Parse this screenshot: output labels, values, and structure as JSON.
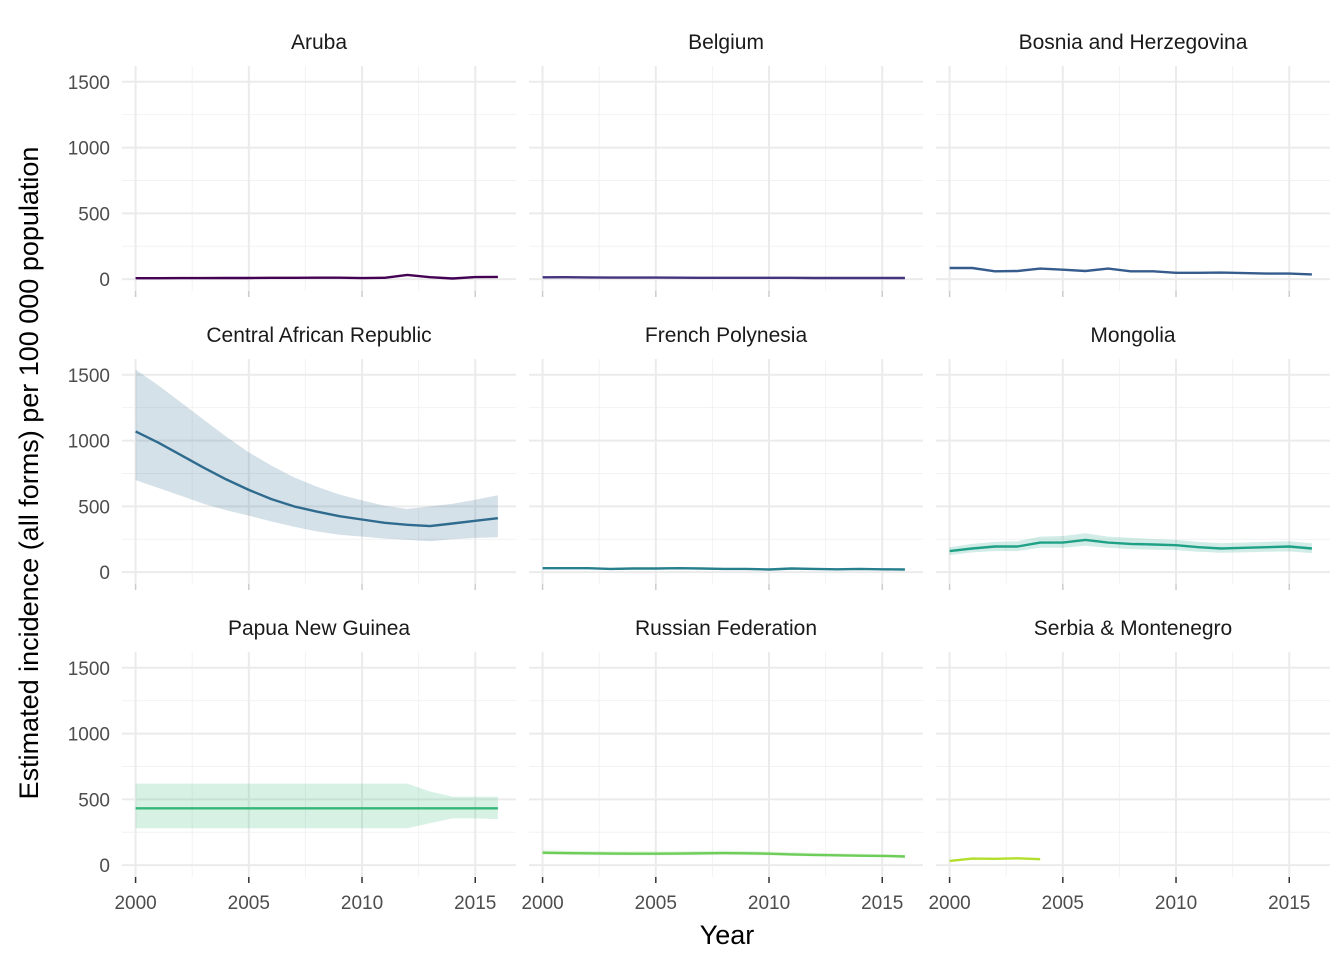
{
  "chart_data": {
    "type": "line",
    "layout": "facet-grid",
    "xlabel": "Year",
    "ylabel": "Estimated incidence (all forms) per 100 000 population",
    "xlim": [
      1999.4,
      2016.8
    ],
    "ylim": [
      -90,
      1620
    ],
    "x_ticks": [
      2000,
      2005,
      2010,
      2015
    ],
    "y_ticks": [
      0,
      500,
      1000,
      1500
    ],
    "grid": true,
    "legend": "none",
    "panels": [
      {
        "name": "Aruba",
        "color": "#440154",
        "x": [
          2000,
          2001,
          2002,
          2003,
          2004,
          2005,
          2006,
          2007,
          2008,
          2009,
          2010,
          2011,
          2012,
          2013,
          2014,
          2015,
          2016
        ],
        "values": [
          7,
          7,
          8,
          8,
          9,
          9,
          10,
          10,
          11,
          11,
          8,
          10,
          32,
          15,
          5,
          16,
          17
        ],
        "lo": null,
        "hi": null
      },
      {
        "name": "Belgium",
        "color": "#46337E",
        "x": [
          2000,
          2001,
          2002,
          2003,
          2004,
          2005,
          2006,
          2007,
          2008,
          2009,
          2010,
          2011,
          2012,
          2013,
          2014,
          2015,
          2016
        ],
        "values": [
          14,
          15,
          13,
          12,
          12,
          12,
          11,
          10,
          10,
          10,
          10,
          10,
          9,
          9,
          9,
          9,
          9
        ],
        "lo": null,
        "hi": null
      },
      {
        "name": "Bosnia and Herzegovina",
        "color": "#365C8D",
        "x": [
          2000,
          2001,
          2002,
          2003,
          2004,
          2005,
          2006,
          2007,
          2008,
          2009,
          2010,
          2011,
          2012,
          2013,
          2014,
          2015,
          2016
        ],
        "values": [
          85,
          85,
          60,
          62,
          80,
          72,
          62,
          80,
          60,
          60,
          48,
          48,
          50,
          46,
          42,
          42,
          36
        ],
        "lo": null,
        "hi": null
      },
      {
        "name": "Central African Republic",
        "color": "#2F6B8E",
        "x": [
          2000,
          2001,
          2002,
          2003,
          2004,
          2005,
          2006,
          2007,
          2008,
          2009,
          2010,
          2011,
          2012,
          2013,
          2014,
          2015,
          2016
        ],
        "values": [
          1070,
          985,
          890,
          795,
          705,
          625,
          555,
          500,
          460,
          425,
          400,
          375,
          360,
          350,
          370,
          390,
          410
        ],
        "lo": [
          700,
          640,
          580,
          520,
          470,
          430,
          385,
          345,
          310,
          285,
          270,
          255,
          245,
          235,
          250,
          260,
          265
        ],
        "hi": [
          1540,
          1420,
          1290,
          1160,
          1030,
          910,
          810,
          720,
          650,
          590,
          545,
          505,
          480,
          500,
          520,
          550,
          585
        ]
      },
      {
        "name": "French Polynesia",
        "color": "#277F8E",
        "x": [
          2000,
          2001,
          2002,
          2003,
          2004,
          2005,
          2006,
          2007,
          2008,
          2009,
          2010,
          2011,
          2012,
          2013,
          2014,
          2015,
          2016
        ],
        "values": [
          30,
          30,
          30,
          25,
          28,
          28,
          30,
          28,
          25,
          25,
          20,
          28,
          25,
          22,
          25,
          22,
          20
        ],
        "lo": null,
        "hi": null
      },
      {
        "name": "Mongolia",
        "color": "#1FA187",
        "x": [
          2000,
          2001,
          2002,
          2003,
          2004,
          2005,
          2006,
          2007,
          2008,
          2009,
          2010,
          2011,
          2012,
          2013,
          2014,
          2015,
          2016
        ],
        "values": [
          160,
          180,
          195,
          195,
          225,
          225,
          245,
          225,
          215,
          210,
          205,
          190,
          180,
          185,
          190,
          195,
          180
        ],
        "lo": [
          130,
          150,
          160,
          160,
          185,
          185,
          200,
          185,
          175,
          170,
          168,
          155,
          148,
          150,
          155,
          158,
          145
        ],
        "hi": [
          190,
          215,
          230,
          235,
          270,
          275,
          295,
          270,
          260,
          252,
          245,
          230,
          220,
          225,
          230,
          235,
          220
        ]
      },
      {
        "name": "Papua New Guinea",
        "color": "#35B779",
        "x": [
          2000,
          2001,
          2002,
          2003,
          2004,
          2005,
          2006,
          2007,
          2008,
          2009,
          2010,
          2011,
          2012,
          2013,
          2014,
          2015,
          2016
        ],
        "values": [
          432,
          432,
          432,
          432,
          432,
          432,
          432,
          432,
          432,
          432,
          432,
          432,
          432,
          432,
          432,
          432,
          432
        ],
        "lo": [
          280,
          280,
          280,
          280,
          280,
          280,
          280,
          280,
          280,
          280,
          280,
          280,
          280,
          320,
          355,
          355,
          350
        ],
        "hi": [
          620,
          620,
          620,
          620,
          620,
          620,
          620,
          620,
          620,
          620,
          620,
          620,
          620,
          560,
          520,
          520,
          520
        ]
      },
      {
        "name": "Russian Federation",
        "color": "#6DCD59",
        "x": [
          2000,
          2001,
          2002,
          2003,
          2004,
          2005,
          2006,
          2007,
          2008,
          2009,
          2010,
          2011,
          2012,
          2013,
          2014,
          2015,
          2016
        ],
        "values": [
          95,
          92,
          90,
          88,
          87,
          87,
          88,
          90,
          92,
          90,
          87,
          82,
          78,
          75,
          72,
          70,
          66
        ],
        "lo": [
          80,
          78,
          76,
          75,
          74,
          74,
          75,
          76,
          78,
          76,
          74,
          70,
          66,
          64,
          61,
          59,
          56
        ],
        "hi": [
          112,
          110,
          108,
          106,
          105,
          105,
          106,
          108,
          110,
          108,
          104,
          98,
          93,
          90,
          86,
          84,
          80
        ]
      },
      {
        "name": "Serbia & Montenegro",
        "color": "#B4DE2C",
        "x": [
          2000,
          2001,
          2002,
          2003,
          2004
        ],
        "values": [
          32,
          50,
          48,
          52,
          45
        ],
        "lo": null,
        "hi": null
      }
    ]
  }
}
